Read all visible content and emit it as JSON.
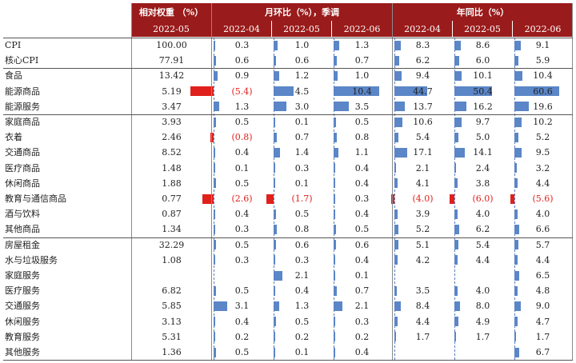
{
  "header": {
    "weight_title": "相对权重 （%）",
    "mom_title": "月环比（%），季调",
    "yoy_title": "年同比（%）",
    "weight_date": "2022-05",
    "dates": [
      "2022-04",
      "2022-05",
      "2022-06"
    ]
  },
  "colors": {
    "header_bg": "#9a1b1b",
    "bar_pos": "#5b86c7",
    "bar_neg": "#e0201b",
    "neg_text": "#e0201b"
  },
  "rows": [
    {
      "label": "CPI",
      "weight": "100.00",
      "mom": [
        "0.3",
        "1.0",
        "1.3"
      ],
      "yoy": [
        "8.3",
        "8.6",
        "9.1"
      ]
    },
    {
      "label": "核心CPI",
      "weight": "77.91",
      "mom": [
        "0.6",
        "0.6",
        "0.7"
      ],
      "yoy": [
        "6.2",
        "6.0",
        "5.9"
      ]
    },
    {
      "label": "食品",
      "weight": "13.42",
      "mom": [
        "0.9",
        "1.2",
        "1.0"
      ],
      "yoy": [
        "9.4",
        "10.1",
        "10.4"
      ]
    },
    {
      "label": "能源商品",
      "weight": "5.19",
      "mom": [
        "(5.4)",
        "4.5",
        "10.4"
      ],
      "yoy": [
        "44.7",
        "50.4",
        "60.6"
      ]
    },
    {
      "label": "能源服务",
      "weight": "3.47",
      "mom": [
        "1.3",
        "3.0",
        "3.5"
      ],
      "yoy": [
        "13.7",
        "16.2",
        "19.6"
      ]
    },
    {
      "label": "家庭商品",
      "weight": "3.93",
      "mom": [
        "0.5",
        "0.1",
        "0.5"
      ],
      "yoy": [
        "10.6",
        "9.7",
        "10.2"
      ]
    },
    {
      "label": "衣着",
      "weight": "2.46",
      "mom": [
        "(0.8)",
        "0.7",
        "0.8"
      ],
      "yoy": [
        "5.4",
        "5.0",
        "5.2"
      ]
    },
    {
      "label": "交通商品",
      "weight": "8.52",
      "mom": [
        "0.4",
        "1.4",
        "1.1"
      ],
      "yoy": [
        "17.1",
        "14.1",
        "9.5"
      ]
    },
    {
      "label": "医疗商品",
      "weight": "1.48",
      "mom": [
        "0.1",
        "0.3",
        "0.4"
      ],
      "yoy": [
        "2.1",
        "2.4",
        "3.2"
      ]
    },
    {
      "label": "休闲商品",
      "weight": "1.88",
      "mom": [
        "0.5",
        "0.1",
        "0.4"
      ],
      "yoy": [
        "4.1",
        "3.8",
        "4.4"
      ]
    },
    {
      "label": "教育与通信商品",
      "weight": "0.77",
      "mom": [
        "(2.6)",
        "(1.7)",
        "0.3"
      ],
      "yoy": [
        "(4.0)",
        "(6.0)",
        "(5.6)"
      ]
    },
    {
      "label": "酒与饮料",
      "weight": "0.87",
      "mom": [
        "0.4",
        "0.5",
        "0.4"
      ],
      "yoy": [
        "3.9",
        "4.0",
        "4.0"
      ]
    },
    {
      "label": "其他商品",
      "weight": "1.34",
      "mom": [
        "0.3",
        "0.8",
        "0.5"
      ],
      "yoy": [
        "5.2",
        "6.2",
        "6.6"
      ]
    },
    {
      "label": "房屋租金",
      "weight": "32.29",
      "mom": [
        "0.5",
        "0.6",
        "0.6"
      ],
      "yoy": [
        "5.1",
        "5.4",
        "5.7"
      ]
    },
    {
      "label": "水与垃圾服务",
      "weight": "1.08",
      "mom": [
        "0.3",
        "0.3",
        "0.4"
      ],
      "yoy": [
        "4.2",
        "4.4",
        "4.4"
      ]
    },
    {
      "label": "家庭服务",
      "weight": "",
      "mom": [
        "",
        "2.1",
        "0.1"
      ],
      "yoy": [
        "",
        "",
        "6.5"
      ]
    },
    {
      "label": "医疗服务",
      "weight": "6.82",
      "mom": [
        "0.5",
        "0.4",
        "0.7"
      ],
      "yoy": [
        "3.5",
        "4.0",
        "4.8"
      ]
    },
    {
      "label": "交通服务",
      "weight": "5.85",
      "mom": [
        "3.1",
        "1.3",
        "2.1"
      ],
      "yoy": [
        "8.4",
        "8.0",
        "9.0"
      ]
    },
    {
      "label": "休闲服务",
      "weight": "3.13",
      "mom": [
        "0.4",
        "0.5",
        "0.3"
      ],
      "yoy": [
        "4.4",
        "4.9",
        "4.7"
      ]
    },
    {
      "label": "教育服务",
      "weight": "5.31",
      "mom": [
        "0.2",
        "0.2",
        "0.2"
      ],
      "yoy": [
        "1.7",
        "1.7",
        "1.7"
      ]
    },
    {
      "label": "其他服务",
      "weight": "1.36",
      "mom": [
        "0.5",
        "0.1",
        "0.4"
      ],
      "yoy": [
        "",
        "",
        "6.7"
      ]
    }
  ],
  "bar_values": {
    "mom": [
      [
        0.3,
        1.0,
        1.3
      ],
      [
        0.6,
        0.6,
        0.7
      ],
      [
        0.9,
        1.2,
        1.0
      ],
      [
        -5.4,
        4.5,
        10.4
      ],
      [
        1.3,
        3.0,
        3.5
      ],
      [
        0.5,
        0.1,
        0.5
      ],
      [
        -0.8,
        0.7,
        0.8
      ],
      [
        0.4,
        1.4,
        1.1
      ],
      [
        0.1,
        0.3,
        0.4
      ],
      [
        0.5,
        0.1,
        0.4
      ],
      [
        -2.6,
        -1.7,
        0.3
      ],
      [
        0.4,
        0.5,
        0.4
      ],
      [
        0.3,
        0.8,
        0.5
      ],
      [
        0.5,
        0.6,
        0.6
      ],
      [
        0.3,
        0.3,
        0.4
      ],
      [
        null,
        2.1,
        0.1
      ],
      [
        0.5,
        0.4,
        0.7
      ],
      [
        3.1,
        1.3,
        2.1
      ],
      [
        0.4,
        0.5,
        0.3
      ],
      [
        0.2,
        0.2,
        0.2
      ],
      [
        0.5,
        0.1,
        0.4
      ]
    ],
    "yoy": [
      [
        8.3,
        8.6,
        9.1
      ],
      [
        6.2,
        6.0,
        5.9
      ],
      [
        9.4,
        10.1,
        10.4
      ],
      [
        44.7,
        50.4,
        60.6
      ],
      [
        13.7,
        16.2,
        19.6
      ],
      [
        10.6,
        9.7,
        10.2
      ],
      [
        5.4,
        5.0,
        5.2
      ],
      [
        17.1,
        14.1,
        9.5
      ],
      [
        2.1,
        2.4,
        3.2
      ],
      [
        4.1,
        3.8,
        4.4
      ],
      [
        -4.0,
        -6.0,
        -5.6
      ],
      [
        3.9,
        4.0,
        4.0
      ],
      [
        5.2,
        6.2,
        6.6
      ],
      [
        5.1,
        5.4,
        5.7
      ],
      [
        4.2,
        4.4,
        4.4
      ],
      [
        null,
        null,
        6.5
      ],
      [
        3.5,
        4.0,
        4.8
      ],
      [
        8.4,
        8.0,
        9.0
      ],
      [
        4.4,
        4.9,
        4.7
      ],
      [
        1.7,
        1.7,
        1.7
      ],
      [
        null,
        null,
        6.7
      ]
    ]
  }
}
